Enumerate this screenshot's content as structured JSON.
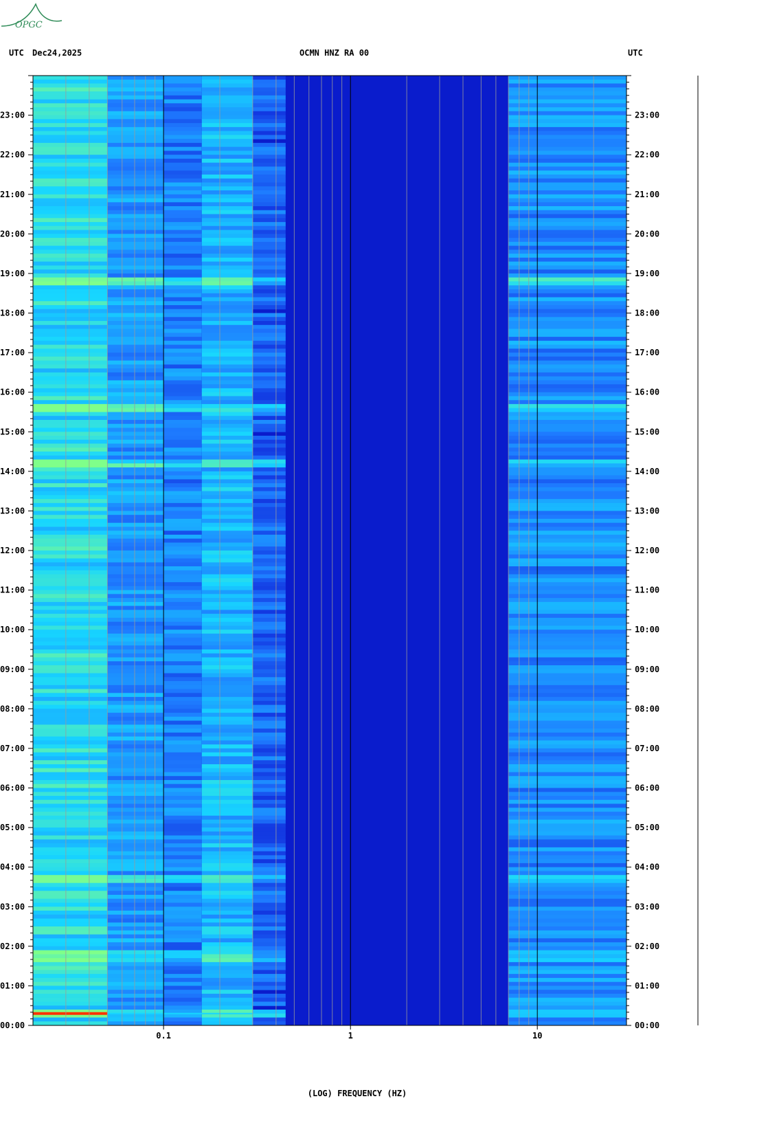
{
  "header": {
    "left_tz": "UTC",
    "date": "Dec24,2025",
    "station": "OCMN HNZ RA 00",
    "right_tz": "UTC"
  },
  "logo": {
    "text": "OPGC",
    "color": "#2e8b57"
  },
  "chart_data": {
    "type": "heatmap",
    "title": "OCMN HNZ RA 00",
    "xlabel": "(LOG) FREQUENCY (HZ)",
    "ylabel": "UTC",
    "x_scale": "log",
    "xlim": [
      0.02,
      30
    ],
    "x_ticks": [
      {
        "value": 0.1,
        "label": "0.1"
      },
      {
        "value": 1,
        "label": "1"
      },
      {
        "value": 10,
        "label": "10"
      }
    ],
    "ylim_hours": [
      0,
      24
    ],
    "y_ticks": [
      "00:00",
      "01:00",
      "02:00",
      "03:00",
      "04:00",
      "05:00",
      "06:00",
      "07:00",
      "08:00",
      "09:00",
      "10:00",
      "11:00",
      "12:00",
      "13:00",
      "14:00",
      "15:00",
      "16:00",
      "17:00",
      "18:00",
      "19:00",
      "20:00",
      "21:00",
      "22:00",
      "23:00"
    ],
    "energy_bands": [
      {
        "f_min": 0.02,
        "f_max": 0.05,
        "level": 0.7
      },
      {
        "f_min": 0.05,
        "f_max": 0.1,
        "level": 0.45
      },
      {
        "f_min": 0.1,
        "f_max": 0.16,
        "level": 0.35
      },
      {
        "f_min": 0.16,
        "f_max": 0.3,
        "level": 0.55
      },
      {
        "f_min": 0.3,
        "f_max": 0.45,
        "level": 0.25
      },
      {
        "f_min": 0.45,
        "f_max": 7,
        "level": 0.05
      },
      {
        "f_min": 7,
        "f_max": 30,
        "level": 0.4
      }
    ],
    "strong_rows_hours": [
      0.3,
      1.75,
      3.7,
      14.2,
      15.6,
      18.8
    ],
    "event_hour": 0.3,
    "colors": {
      "background": "#0a1ccc",
      "low": "#0e1fd6",
      "mid": "#1e7bff",
      "high": "#17d6ff",
      "peak": "#7fff8a",
      "event": "#ff3300",
      "gridline": "#9a9a9a"
    }
  }
}
